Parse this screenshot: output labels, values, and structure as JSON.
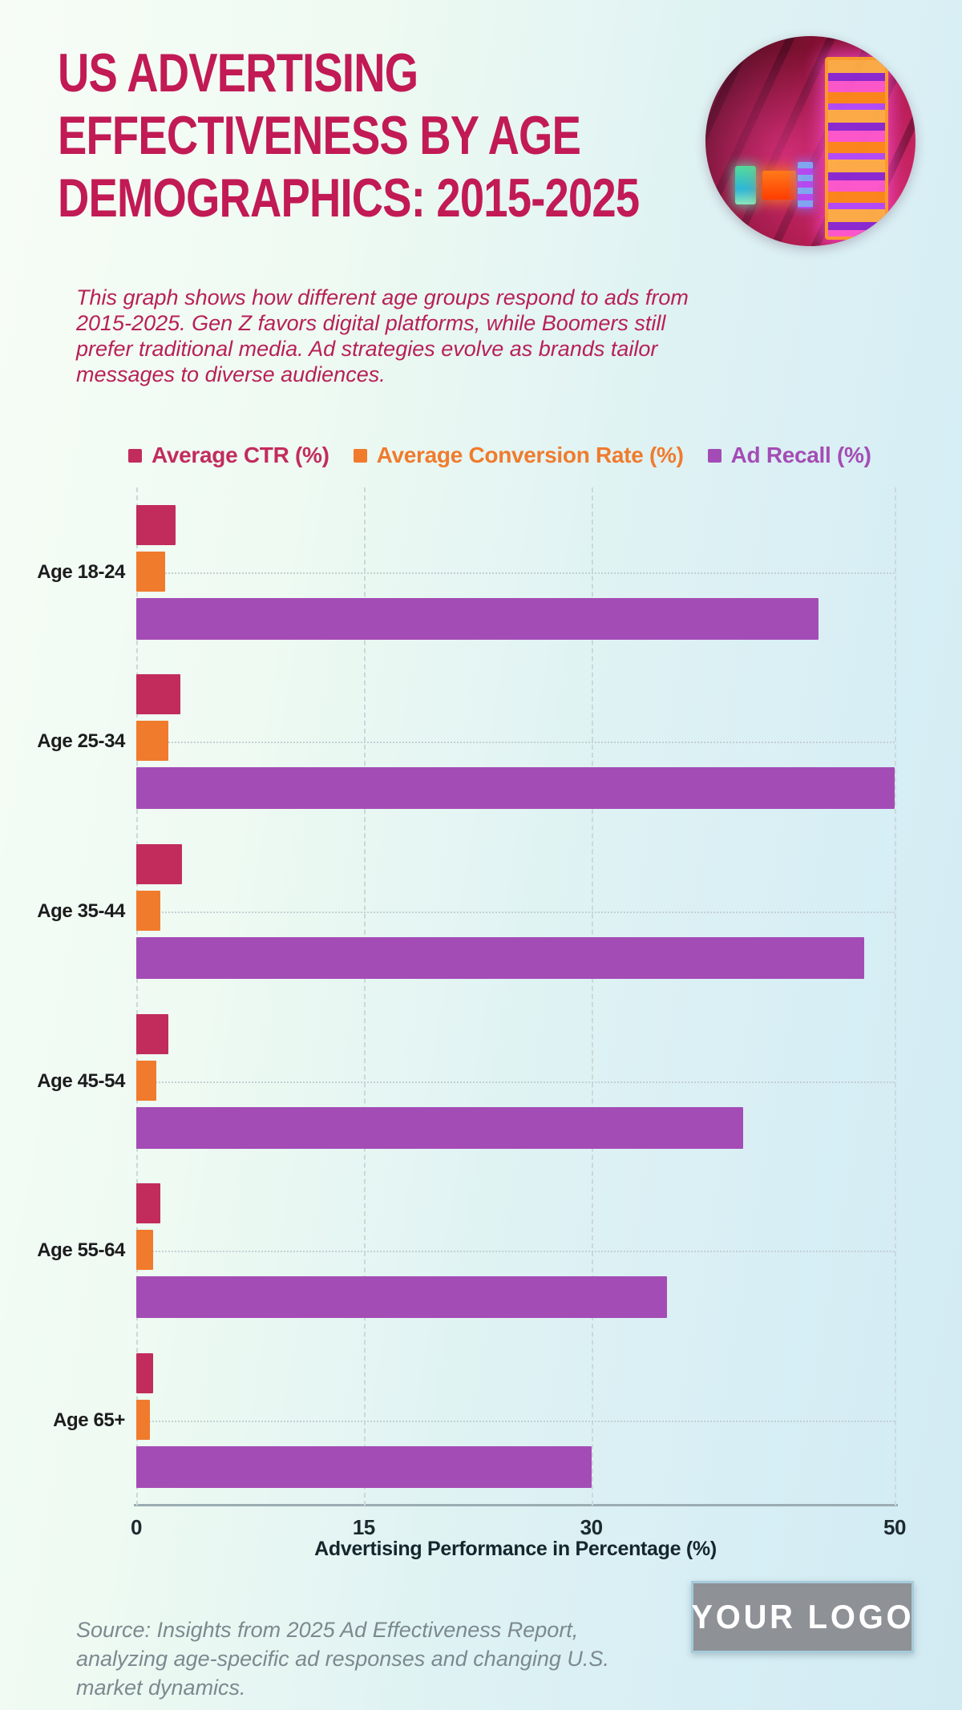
{
  "page": {
    "title_lines": [
      "US ADVERTISING",
      "EFFECTIVENESS BY AGE",
      "DEMOGRAPHICS: 2015-2025"
    ],
    "description": "This graph shows how different age groups respond to ads from 2015-2025. Gen Z favors digital platforms, while Boomers still prefer traditional media. Ad strategies evolve as brands tailor messages to diverse audiences.",
    "title_color": "#C11A55"
  },
  "legend": [
    {
      "label": "Average CTR (%)",
      "color": "#C22C5D"
    },
    {
      "label": "Average Conversion Rate (%)",
      "color": "#F07B2D"
    },
    {
      "label": "Ad Recall (%)",
      "color": "#A44CB5"
    }
  ],
  "chart_data": {
    "type": "bar",
    "orientation": "horizontal",
    "categories": [
      "Age 18-24",
      "Age 25-34",
      "Age 35-44",
      "Age 45-54",
      "Age 55-64",
      "Age 65+"
    ],
    "series": [
      {
        "name": "Average CTR (%)",
        "color": "#C22C5D",
        "values": [
          2.6,
          2.9,
          3.0,
          2.1,
          1.6,
          1.1
        ]
      },
      {
        "name": "Average Conversion Rate (%)",
        "color": "#F07B2D",
        "values": [
          1.9,
          2.1,
          1.6,
          1.3,
          1.1,
          0.9
        ]
      },
      {
        "name": "Ad Recall (%)",
        "color": "#A44CB5",
        "values": [
          45,
          50,
          48,
          40,
          35,
          30
        ]
      }
    ],
    "xlabel": "Advertising Performance in Percentage (%)",
    "xlim": [
      0,
      50
    ],
    "xticks": [
      0,
      15,
      30,
      50
    ],
    "grid": true,
    "legend_position": "top"
  },
  "footer": {
    "source": "Source: Insights from 2025 Ad Effectiveness Report, analyzing age-specific ad responses and changing U.S. market dynamics.",
    "logo": "YOUR LOGO"
  }
}
